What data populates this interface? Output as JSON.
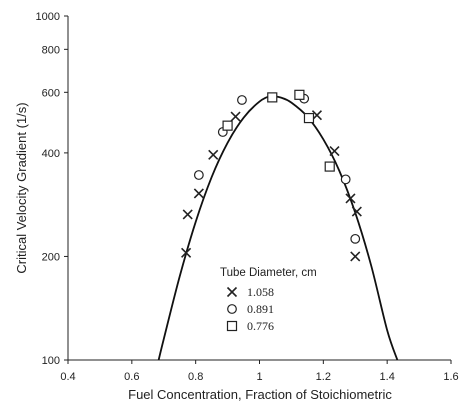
{
  "chart_data": {
    "type": "scatter",
    "title": "",
    "xlabel": "Fuel Concentration, Fraction of Stoichiometric",
    "ylabel": "Critical Velocity Gradient (1/s)",
    "xlim": [
      0.4,
      1.6
    ],
    "ylim": [
      100,
      1000
    ],
    "y_scale": "log",
    "x_ticks": [
      0.4,
      0.6,
      0.8,
      1.0,
      1.2,
      1.4,
      1.6
    ],
    "x_tick_labels": [
      "0.4",
      "0.6",
      "0.8",
      "1",
      "1.2",
      "1.4",
      "1.6"
    ],
    "y_ticks": [
      100,
      200,
      400,
      600,
      800,
      1000
    ],
    "y_tick_labels": [
      "100",
      "200",
      "400",
      "600",
      "800",
      "1000"
    ],
    "grid": false,
    "legend": {
      "title": "Tube Diameter, cm",
      "placement": "bottom-center"
    },
    "series": [
      {
        "name": "1.058",
        "marker": "x",
        "points": [
          {
            "x": 0.77,
            "y": 205
          },
          {
            "x": 0.775,
            "y": 265
          },
          {
            "x": 0.81,
            "y": 305
          },
          {
            "x": 0.855,
            "y": 395
          },
          {
            "x": 0.925,
            "y": 510
          },
          {
            "x": 1.18,
            "y": 515
          },
          {
            "x": 1.235,
            "y": 405
          },
          {
            "x": 1.285,
            "y": 295
          },
          {
            "x": 1.305,
            "y": 270
          },
          {
            "x": 1.3,
            "y": 200
          }
        ]
      },
      {
        "name": "0.891",
        "marker": "circle",
        "points": [
          {
            "x": 0.81,
            "y": 345
          },
          {
            "x": 0.885,
            "y": 460
          },
          {
            "x": 0.945,
            "y": 570
          },
          {
            "x": 1.14,
            "y": 575
          },
          {
            "x": 1.27,
            "y": 335
          },
          {
            "x": 1.3,
            "y": 225
          }
        ]
      },
      {
        "name": "0.776",
        "marker": "square",
        "points": [
          {
            "x": 0.9,
            "y": 480
          },
          {
            "x": 1.04,
            "y": 580
          },
          {
            "x": 1.125,
            "y": 590
          },
          {
            "x": 1.155,
            "y": 505
          },
          {
            "x": 1.22,
            "y": 365
          }
        ]
      }
    ],
    "fit_curve": {
      "type": "line",
      "peak_x": 1.035,
      "peak_y": 585,
      "x": [
        0.684,
        0.7,
        0.75,
        0.8,
        0.85,
        0.9,
        0.95,
        1.0,
        1.035,
        1.07,
        1.1,
        1.15,
        1.2,
        1.25,
        1.3,
        1.35,
        1.4,
        1.432
      ],
      "y": [
        100,
        115,
        175,
        252,
        340,
        428,
        506,
        564,
        585,
        578,
        560,
        510,
        438,
        355,
        268,
        188,
        122,
        100
      ]
    }
  }
}
